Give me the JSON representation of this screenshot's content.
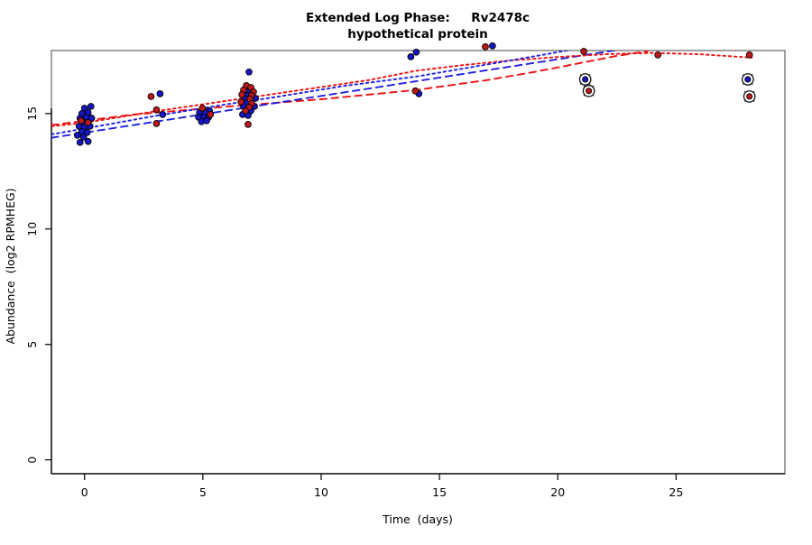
{
  "figure": {
    "title_line1": "Extended Log Phase:     Rv2478c",
    "title_line2": "hypothetical protein",
    "x_label": "Time  (days)",
    "y_label": "Abundance  (log2 RPMHEG)"
  },
  "chart_data": {
    "type": "scatter",
    "title": "Extended Log Phase: Rv2478c",
    "subtitle": "hypothetical protein",
    "xlabel": "Time (days)",
    "ylabel": "Abundance (log2 RPMHEG)",
    "xlim": [
      -1.4,
      29.6
    ],
    "ylim": [
      -0.6,
      17.73
    ],
    "x_ticks": [
      0,
      5,
      10,
      15,
      20,
      25
    ],
    "y_ticks": [
      0,
      5,
      10,
      15
    ],
    "grid": false,
    "legend": "none",
    "colors": {
      "blue_point": "#1616C8",
      "red_point": "#C01818",
      "blue_line": "#2020E0",
      "red_line": "#EE1111",
      "outlier_ring": "#111111",
      "box_gray": "#8A8A8A",
      "axis_black": "#000000"
    },
    "series": [
      {
        "name": "blue-points",
        "color_key": "blue_point",
        "marker": "filled-circle",
        "points": [
          [
            0.0,
            15.23
          ],
          [
            0.27,
            15.31
          ],
          [
            -0.11,
            15.0
          ],
          [
            0.15,
            15.04
          ],
          [
            -0.19,
            14.8
          ],
          [
            0.08,
            14.84
          ],
          [
            0.3,
            14.8
          ],
          [
            -0.08,
            14.61
          ],
          [
            -0.23,
            14.45
          ],
          [
            0.0,
            14.41
          ],
          [
            0.23,
            14.45
          ],
          [
            -0.11,
            14.22
          ],
          [
            0.11,
            14.18
          ],
          [
            -0.3,
            14.06
          ],
          [
            -0.04,
            13.98
          ],
          [
            0.15,
            13.79
          ],
          [
            -0.19,
            13.75
          ],
          [
            3.19,
            15.86
          ],
          [
            3.3,
            14.96
          ],
          [
            5.28,
            15.12
          ],
          [
            4.86,
            15.04
          ],
          [
            5.09,
            15.04
          ],
          [
            4.82,
            14.84
          ],
          [
            5.05,
            14.84
          ],
          [
            5.24,
            14.84
          ],
          [
            4.94,
            14.65
          ],
          [
            5.16,
            14.69
          ],
          [
            6.95,
            16.8
          ],
          [
            6.95,
            15.98
          ],
          [
            6.87,
            15.78
          ],
          [
            6.8,
            15.63
          ],
          [
            7.22,
            15.66
          ],
          [
            6.84,
            15.47
          ],
          [
            6.72,
            15.31
          ],
          [
            7.18,
            15.31
          ],
          [
            7.03,
            15.12
          ],
          [
            6.68,
            14.96
          ],
          [
            6.91,
            14.92
          ],
          [
            13.79,
            17.46
          ],
          [
            14.02,
            17.66
          ],
          [
            14.13,
            15.86
          ],
          [
            17.24,
            17.93
          ]
        ]
      },
      {
        "name": "red-points",
        "color_key": "red_point",
        "marker": "filled-circle",
        "points": [
          [
            0.15,
            14.61
          ],
          [
            -0.15,
            14.69
          ],
          [
            2.81,
            15.74
          ],
          [
            3.04,
            15.16
          ],
          [
            3.04,
            14.57
          ],
          [
            4.98,
            15.23
          ],
          [
            5.32,
            14.96
          ],
          [
            6.84,
            16.21
          ],
          [
            7.03,
            16.13
          ],
          [
            6.72,
            16.02
          ],
          [
            7.14,
            15.94
          ],
          [
            6.65,
            15.82
          ],
          [
            7.06,
            15.78
          ],
          [
            6.99,
            15.63
          ],
          [
            6.61,
            15.51
          ],
          [
            7.06,
            15.43
          ],
          [
            6.95,
            15.27
          ],
          [
            6.8,
            15.12
          ],
          [
            6.91,
            14.53
          ],
          [
            13.98,
            15.98
          ],
          [
            16.94,
            17.89
          ],
          [
            21.1,
            17.69
          ],
          [
            24.23,
            17.54
          ],
          [
            28.1,
            17.54
          ]
        ]
      },
      {
        "name": "blue-outlier-points",
        "color_key": "blue_point",
        "marker": "circled-x",
        "points": [
          [
            21.16,
            16.48
          ],
          [
            28.03,
            16.48
          ]
        ]
      },
      {
        "name": "red-outlier-points",
        "color_key": "red_point",
        "marker": "circled-x",
        "points": [
          [
            21.31,
            15.98
          ],
          [
            28.1,
            15.74
          ]
        ]
      }
    ],
    "fit_lines": [
      {
        "name": "red-dashed-fit",
        "color_key": "red_line",
        "style": "dashed",
        "points": [
          [
            -1.4,
            14.5
          ],
          [
            2,
            14.95
          ],
          [
            6,
            15.3
          ],
          [
            10,
            15.62
          ],
          [
            14,
            16.02
          ],
          [
            17,
            16.45
          ],
          [
            19,
            16.8
          ],
          [
            21,
            17.2
          ],
          [
            22.5,
            17.5
          ],
          [
            23.8,
            17.7
          ]
        ]
      },
      {
        "name": "blue-dashed-fit",
        "color_key": "blue_line",
        "style": "dashed",
        "points": [
          [
            -1.4,
            13.95
          ],
          [
            22.5,
            17.75
          ]
        ]
      },
      {
        "name": "red-dotted-fit",
        "color_key": "red_line",
        "style": "dotted",
        "points": [
          [
            -1.4,
            14.45
          ],
          [
            0,
            14.6
          ],
          [
            3,
            15.1
          ],
          [
            6,
            15.55
          ],
          [
            9,
            16.0
          ],
          [
            12,
            16.45
          ],
          [
            14,
            16.85
          ],
          [
            16,
            17.1
          ],
          [
            18,
            17.3
          ],
          [
            20,
            17.45
          ],
          [
            22,
            17.57
          ],
          [
            24,
            17.63
          ],
          [
            26,
            17.57
          ],
          [
            28.2,
            17.42
          ]
        ]
      },
      {
        "name": "blue-dotted-fit",
        "color_key": "blue_line",
        "style": "dotted",
        "points": [
          [
            -1.4,
            14.1
          ],
          [
            0,
            14.35
          ],
          [
            3,
            14.9
          ],
          [
            6,
            15.4
          ],
          [
            8,
            15.7
          ],
          [
            11,
            16.2
          ],
          [
            14,
            16.6
          ],
          [
            16,
            16.95
          ],
          [
            18,
            17.3
          ],
          [
            20.5,
            17.75
          ]
        ]
      }
    ]
  }
}
